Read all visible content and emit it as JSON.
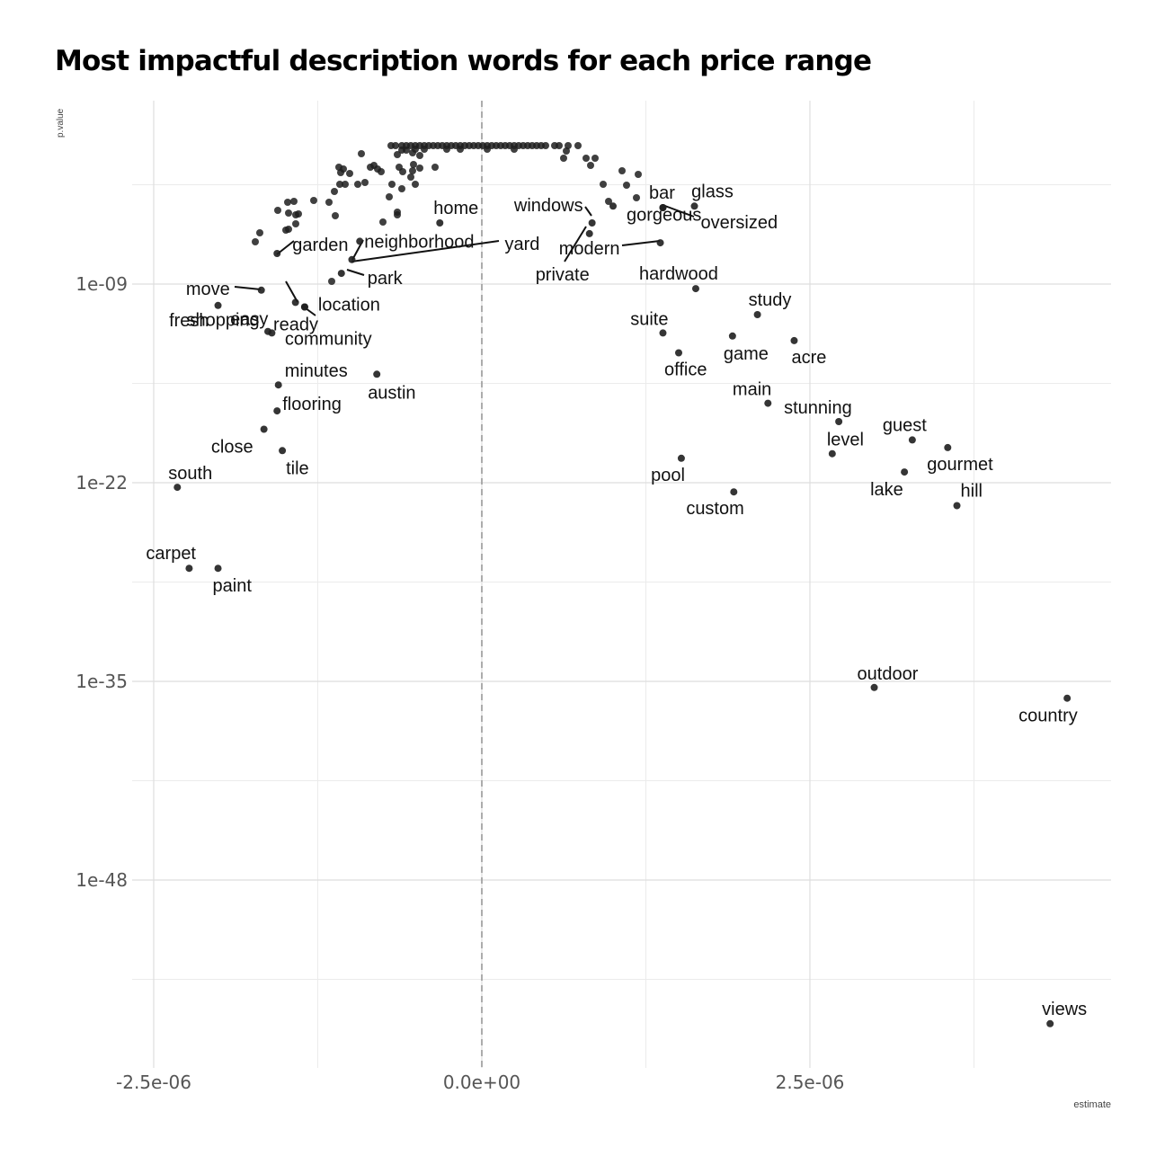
{
  "chart_data": {
    "type": "scatter",
    "title": "Most impactful description words for each price range",
    "xlabel": "estimate",
    "ylabel": "p.value",
    "x_scale": "linear",
    "y_scale": "log10, reversed (smallest p-value at bottom)",
    "xlim": [
      -2.73e-06,
      4.97e-06
    ],
    "ylim_log10_reversed": [
      -1.3,
      -64.4
    ],
    "x_ticks": [
      -2.5e-06,
      0,
      2.5e-06
    ],
    "x_tick_labels": [
      "-2.5e-06",
      "0.0e+00",
      "2.5e-06"
    ],
    "y_ticks": [
      "1e-09",
      "1e-22",
      "1e-35",
      "1e-48"
    ],
    "grid": true,
    "reference_line": {
      "x": 0,
      "style": "dashed"
    },
    "labeled_points": [
      {
        "word": "home",
        "x": -3.2e-07,
        "p": "1e-5.0"
      },
      {
        "word": "windows",
        "x": 8.4e-07,
        "p": "1e-5.0"
      },
      {
        "word": "bar",
        "x": 1.38e-06,
        "p": "1e-4.0"
      },
      {
        "word": "glass",
        "x": 1.62e-06,
        "p": "1e-3.9"
      },
      {
        "word": "oversized",
        "x": 1.38e-06,
        "p": "1e-4.0"
      },
      {
        "word": "gorgeous",
        "x": 1e-06,
        "p": "1e-3.9"
      },
      {
        "word": "garden",
        "x": -1.56e-06,
        "p": "1e-7.0"
      },
      {
        "word": "neighborhood",
        "x": -9.3e-07,
        "p": "1e-6.2"
      },
      {
        "word": "yard",
        "x": -9.9e-07,
        "p": "1e-7.4"
      },
      {
        "word": "modern",
        "x": 1.36e-06,
        "p": "1e-6.3"
      },
      {
        "word": "private",
        "x": 8.2e-07,
        "p": "1e-5.7"
      },
      {
        "word": "shopping",
        "x": -1.42e-06,
        "p": "1e-10.2"
      },
      {
        "word": "park",
        "x": -1.07e-06,
        "p": "1e-8.3"
      },
      {
        "word": "move",
        "x": -1.68e-06,
        "p": "1e-9.4"
      },
      {
        "word": "hardwood",
        "x": 1.63e-06,
        "p": "1e-9.3"
      },
      {
        "word": "location",
        "x": -1.35e-06,
        "p": "1e-10.5"
      },
      {
        "word": "study",
        "x": 2.1e-06,
        "p": "1e-11.0"
      },
      {
        "word": "fresh",
        "x": -2.01e-06,
        "p": "1e-10.4"
      },
      {
        "word": "easy",
        "x": -1.6e-06,
        "p": "1e-12.2"
      },
      {
        "word": "community",
        "x": -1.35e-06,
        "p": "1e-10.5"
      },
      {
        "word": "suite",
        "x": 1.38e-06,
        "p": "1e-12.2"
      },
      {
        "word": "ready",
        "x": -1.63e-06,
        "p": "1e-12.1"
      },
      {
        "word": "game",
        "x": 1.91e-06,
        "p": "1e-12.4"
      },
      {
        "word": "acre",
        "x": 2.38e-06,
        "p": "1e-12.7"
      },
      {
        "word": "office",
        "x": 1.5e-06,
        "p": "1e-13.5"
      },
      {
        "word": "minutes",
        "x": -1.55e-06,
        "p": "1e-15.6"
      },
      {
        "word": "austin",
        "x": -8e-07,
        "p": "1e-14.9"
      },
      {
        "word": "main",
        "x": 2.18e-06,
        "p": "1e-16.8"
      },
      {
        "word": "flooring",
        "x": -1.56e-06,
        "p": "1e-17.3"
      },
      {
        "word": "stunning",
        "x": 2.72e-06,
        "p": "1e-18.0"
      },
      {
        "word": "guest",
        "x": 3.28e-06,
        "p": "1e-19.2"
      },
      {
        "word": "close",
        "x": -1.66e-06,
        "p": "1e-18.5"
      },
      {
        "word": "level",
        "x": 2.67e-06,
        "p": "1e-20.1"
      },
      {
        "word": "gourmet",
        "x": 3.55e-06,
        "p": "1e-19.7"
      },
      {
        "word": "tile",
        "x": -1.52e-06,
        "p": "1e-19.9"
      },
      {
        "word": "pool",
        "x": 1.52e-06,
        "p": "1e-20.4"
      },
      {
        "word": "south",
        "x": -2.32e-06,
        "p": "1e-22.3"
      },
      {
        "word": "lake",
        "x": 3.22e-06,
        "p": "1e-21.3"
      },
      {
        "word": "hill",
        "x": 3.62e-06,
        "p": "1e-23.5"
      },
      {
        "word": "custom",
        "x": 1.92e-06,
        "p": "1e-22.6"
      },
      {
        "word": "carpet",
        "x": -2.23e-06,
        "p": "1e-27.6"
      },
      {
        "word": "paint",
        "x": -2.01e-06,
        "p": "1e-27.6"
      },
      {
        "word": "outdoor",
        "x": 2.99e-06,
        "p": "1e-35.4"
      },
      {
        "word": "country",
        "x": 4.46e-06,
        "p": "1e-36.1"
      },
      {
        "word": "views",
        "x": 4.33e-06,
        "p": "1e-57.4"
      }
    ]
  }
}
